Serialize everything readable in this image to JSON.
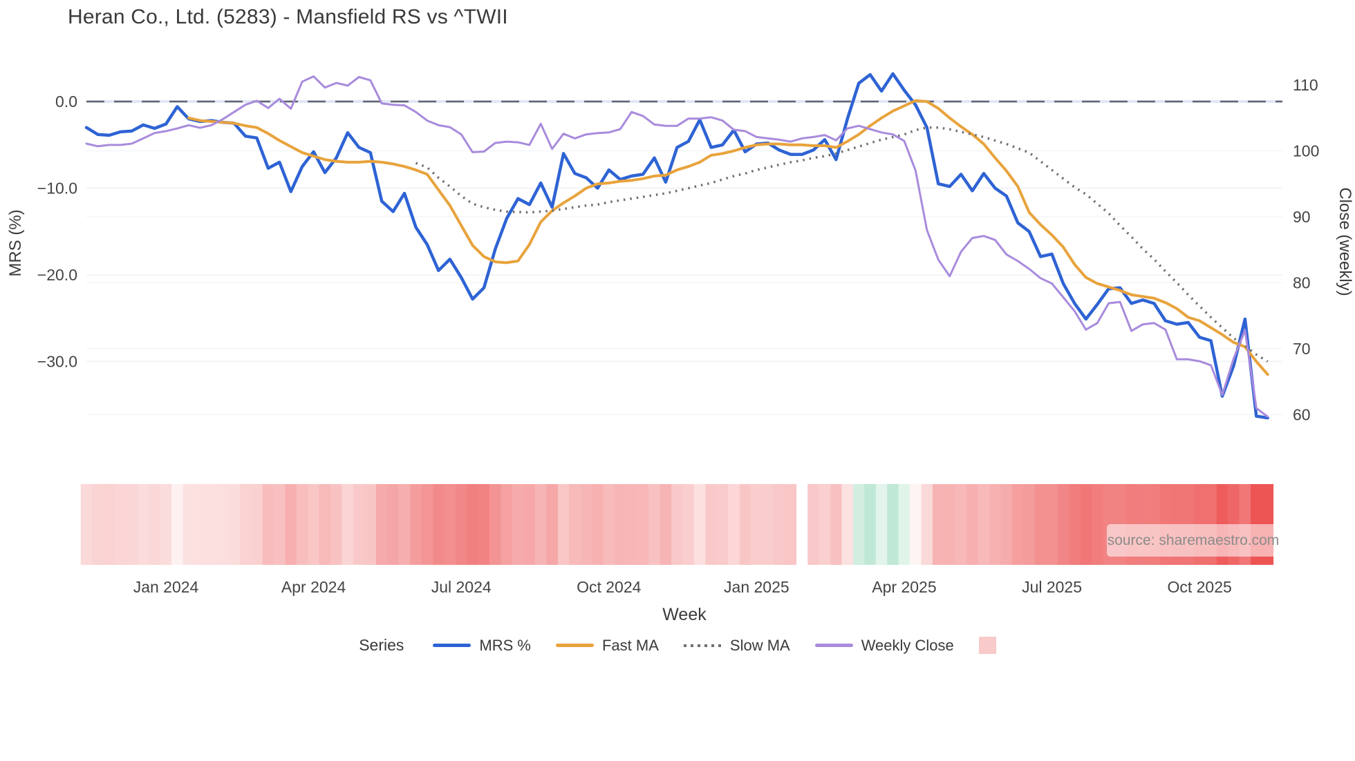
{
  "chart_data": {
    "type": "line",
    "title": "Heran Co., Ltd. (5283) - Mansfield RS vs ^TWII",
    "source_note": "source: sharemaestro.com",
    "legend_label": "Series",
    "legend_position": "bottom",
    "grid": true,
    "x": {
      "label": "Week",
      "frequency": "weekly",
      "start_date": "2023-11-13",
      "n_weeks": 105,
      "tick_labels": [
        "Jan 2024",
        "Apr 2024",
        "Jul 2024",
        "Oct 2024",
        "Jan 2025",
        "Apr 2025",
        "Jul 2025",
        "Oct 2025"
      ],
      "tick_week_indices": [
        7,
        20,
        33,
        46,
        59,
        72,
        85,
        98
      ]
    },
    "y_left": {
      "label": "MRS (%)",
      "tick_labels": [
        "0.0",
        "−10.0",
        "−20.0",
        "−30.0"
      ],
      "tick_values": [
        0,
        -10,
        -20,
        -30
      ],
      "range": [
        -37.1,
        4.9
      ]
    },
    "y_right": {
      "label": "Close (weekly)",
      "tick_labels": [
        "110",
        "100",
        "90",
        "80",
        "70",
        "60"
      ],
      "tick_values": [
        110,
        100,
        90,
        80,
        70,
        60
      ],
      "range": [
        58.9,
        114.0
      ]
    },
    "zero_line": {
      "value": 0,
      "style": "dashed",
      "color": "#62666e"
    },
    "series": [
      {
        "name": "MRS %",
        "axis": "left",
        "color": "#2e63d4",
        "line_style": "solid",
        "width": 4.5,
        "values": [
          -3.0,
          -3.8,
          -3.9,
          -3.5,
          -3.4,
          -2.7,
          -3.1,
          -2.6,
          -0.6,
          -2.0,
          -2.3,
          -2.2,
          -2.4,
          -2.5,
          -4.0,
          -4.2,
          -7.7,
          -7.0,
          -10.4,
          -7.5,
          -5.8,
          -8.2,
          -6.5,
          -3.6,
          -5.3,
          -5.9,
          -11.5,
          -12.7,
          -10.6,
          -14.5,
          -16.5,
          -19.5,
          -18.2,
          -20.3,
          -22.8,
          -21.5,
          -17.0,
          -13.5,
          -11.2,
          -11.9,
          -9.4,
          -12.2,
          -6.0,
          -8.3,
          -8.8,
          -10.0,
          -7.9,
          -9.0,
          -8.6,
          -8.4,
          -6.5,
          -9.3,
          -5.3,
          -4.6,
          -2.1,
          -5.3,
          -5.0,
          -3.3,
          -5.8,
          -4.9,
          -4.8,
          -5.6,
          -6.1,
          -6.1,
          -5.6,
          -4.4,
          -6.7,
          -2.0,
          2.1,
          3.1,
          1.2,
          3.2,
          1.3,
          -0.4,
          -3.0,
          -9.5,
          -9.8,
          -8.4,
          -10.3,
          -8.3,
          -10.0,
          -10.9,
          -14.0,
          -15.0,
          -17.9,
          -17.6,
          -21.0,
          -23.3,
          -25.1,
          -23.4,
          -21.6,
          -21.5,
          -23.3,
          -22.9,
          -23.3,
          -25.3,
          -25.7,
          -25.5,
          -27.2,
          -27.6,
          -34.0,
          -30.5,
          -25.1,
          -36.3,
          -36.5
        ]
      },
      {
        "name": "Fast MA",
        "axis": "left",
        "color": "#e8a33c",
        "line_style": "solid",
        "width": 4,
        "values": [
          null,
          null,
          null,
          null,
          null,
          null,
          null,
          null,
          null,
          -1.9,
          -2.2,
          -2.3,
          -2.4,
          -2.5,
          -2.8,
          -3.0,
          -3.7,
          -4.5,
          -5.2,
          -5.9,
          -6.3,
          -6.7,
          -6.9,
          -7.0,
          -7.0,
          -6.9,
          -7.0,
          -7.2,
          -7.5,
          -7.9,
          -8.4,
          -10.2,
          -12.0,
          -14.3,
          -16.6,
          -17.9,
          -18.5,
          -18.6,
          -18.4,
          -16.5,
          -13.9,
          -12.6,
          -11.7,
          -10.9,
          -10.0,
          -9.5,
          -9.4,
          -9.2,
          -9.1,
          -8.9,
          -8.6,
          -8.5,
          -7.9,
          -7.5,
          -7.0,
          -6.2,
          -6.0,
          -5.7,
          -5.3,
          -5.0,
          -4.9,
          -4.9,
          -5.0,
          -5.0,
          -5.1,
          -5.1,
          -5.3,
          -4.6,
          -3.8,
          -2.8,
          -1.9,
          -1.1,
          -0.5,
          0.1,
          0.0,
          -0.8,
          -1.9,
          -2.9,
          -3.8,
          -4.9,
          -6.5,
          -8.0,
          -9.8,
          -12.8,
          -14.2,
          -15.4,
          -16.8,
          -18.8,
          -20.3,
          -21.0,
          -21.4,
          -21.8,
          -22.3,
          -22.5,
          -22.7,
          -23.2,
          -23.9,
          -24.9,
          -25.3,
          -26.1,
          -26.9,
          -27.8,
          -28.3,
          -30.0,
          -31.5
        ]
      },
      {
        "name": "Slow MA",
        "axis": "left",
        "color": "#6f6f6f",
        "line_style": "dotted",
        "width": 3.5,
        "values": [
          null,
          null,
          null,
          null,
          null,
          null,
          null,
          null,
          null,
          null,
          null,
          null,
          null,
          null,
          null,
          null,
          null,
          null,
          null,
          null,
          null,
          null,
          null,
          null,
          null,
          null,
          null,
          null,
          null,
          -7.1,
          -7.6,
          -8.8,
          -9.8,
          -10.9,
          -11.8,
          -12.2,
          -12.5,
          -12.7,
          -12.75,
          -12.8,
          -12.7,
          -12.6,
          -12.4,
          -12.2,
          -12.0,
          -11.9,
          -11.6,
          -11.4,
          -11.2,
          -11.0,
          -10.8,
          -10.6,
          -10.3,
          -10.0,
          -9.7,
          -9.4,
          -9.0,
          -8.6,
          -8.3,
          -7.9,
          -7.6,
          -7.3,
          -7.0,
          -6.8,
          -6.5,
          -6.3,
          -6.0,
          -5.6,
          -5.2,
          -4.8,
          -4.4,
          -4.1,
          -3.8,
          -3.3,
          -3.0,
          -3.0,
          -3.2,
          -3.5,
          -3.8,
          -4.1,
          -4.5,
          -4.9,
          -5.4,
          -5.9,
          -6.9,
          -7.9,
          -8.9,
          -9.9,
          -10.7,
          -11.8,
          -12.9,
          -14.3,
          -15.6,
          -17.0,
          -18.2,
          -19.6,
          -20.9,
          -22.3,
          -23.6,
          -24.9,
          -26.1,
          -27.3,
          -28.2,
          -29.2,
          -30.0
        ]
      },
      {
        "name": "Weekly Close",
        "axis": "right",
        "color": "#a88bdc",
        "line_style": "solid",
        "width": 3,
        "values": [
          101.1,
          100.7,
          100.9,
          100.9,
          101.1,
          101.9,
          102.7,
          103.0,
          103.4,
          103.9,
          103.5,
          103.9,
          104.8,
          105.9,
          107.0,
          107.6,
          106.5,
          107.9,
          106.4,
          110.5,
          111.3,
          109.6,
          110.3,
          109.9,
          111.2,
          110.7,
          107.2,
          107.0,
          106.9,
          105.9,
          104.6,
          103.9,
          103.6,
          102.5,
          99.8,
          99.9,
          101.2,
          101.4,
          101.3,
          100.9,
          104.1,
          100.3,
          102.6,
          101.9,
          102.5,
          102.7,
          102.8,
          103.3,
          105.9,
          105.3,
          104.0,
          103.8,
          103.8,
          104.9,
          104.9,
          105.1,
          104.6,
          103.2,
          103.0,
          102.1,
          101.9,
          101.7,
          101.4,
          101.9,
          102.1,
          102.4,
          101.6,
          103.4,
          103.8,
          103.3,
          102.8,
          102.5,
          101.5,
          97.0,
          88.0,
          83.5,
          81.0,
          84.7,
          86.8,
          87.1,
          86.5,
          84.3,
          83.3,
          82.1,
          80.7,
          79.9,
          77.8,
          75.7,
          72.9,
          73.9,
          76.9,
          77.1,
          72.7,
          73.7,
          73.9,
          72.9,
          68.4,
          68.4,
          68.1,
          67.5,
          63.0,
          68.5,
          72.8,
          61.0,
          59.7
        ]
      }
    ],
    "heatmap": {
      "derived_from": "MRS %",
      "gap_week_indices": [
        63
      ],
      "negative_base": "#ec4b4b",
      "positive_base": "#9fdcc0",
      "legend_swatch_color": "#f8caca"
    }
  }
}
